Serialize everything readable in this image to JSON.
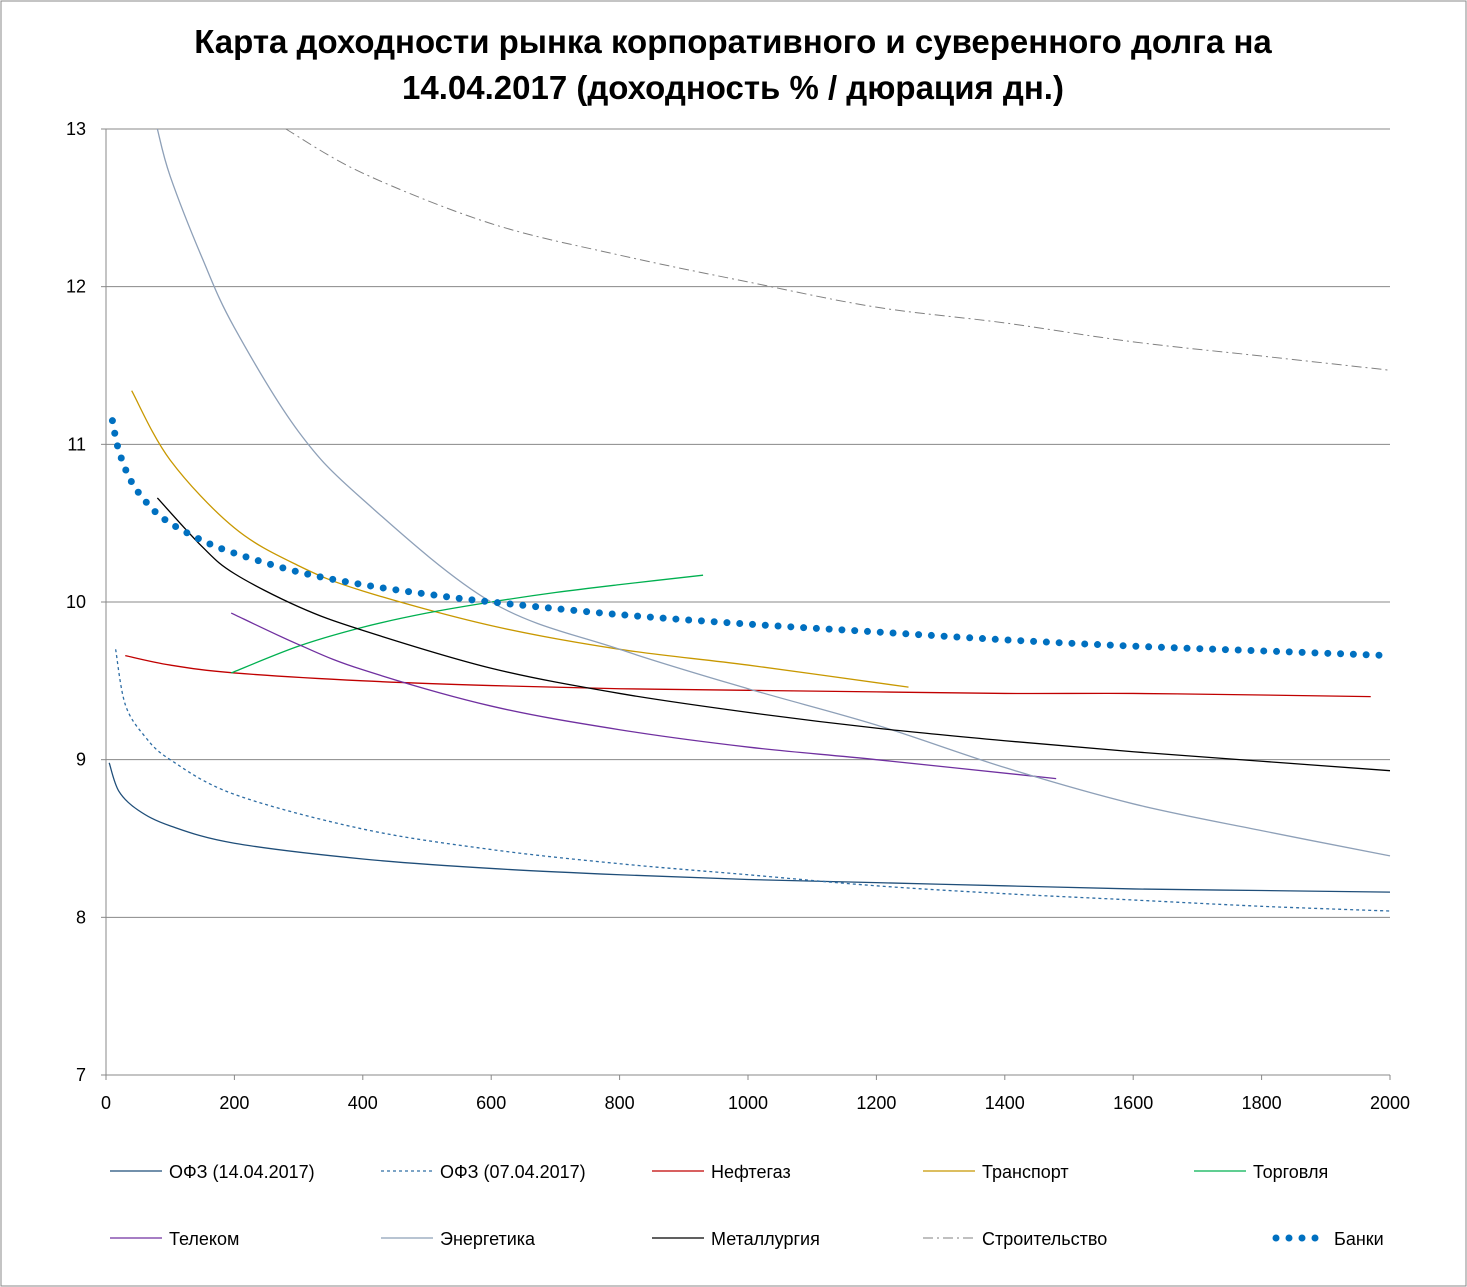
{
  "chart_data": {
    "type": "line",
    "title": [
      "Карта доходности рынка корпоративного и суверенного долга на",
      "14.04.2017 (доходность % / дюрация дн.)"
    ],
    "xlabel": "",
    "ylabel": "",
    "xlim": [
      0,
      2000
    ],
    "ylim": [
      7,
      13
    ],
    "xticks": [
      0,
      200,
      400,
      600,
      800,
      1000,
      1200,
      1400,
      1600,
      1800,
      2000
    ],
    "yticks": [
      7,
      8,
      9,
      10,
      11,
      12,
      13
    ],
    "grid": "horizontal",
    "legend_position": "bottom",
    "series": [
      {
        "name": "ОФЗ (14.04.2017)",
        "color": "#1f4e79",
        "style": "solid",
        "points": [
          [
            5,
            8.98
          ],
          [
            20,
            8.8
          ],
          [
            50,
            8.68
          ],
          [
            100,
            8.58
          ],
          [
            200,
            8.47
          ],
          [
            400,
            8.37
          ],
          [
            600,
            8.31
          ],
          [
            800,
            8.27
          ],
          [
            1000,
            8.24
          ],
          [
            1200,
            8.22
          ],
          [
            1400,
            8.2
          ],
          [
            1600,
            8.18
          ],
          [
            1800,
            8.17
          ],
          [
            2000,
            8.16
          ]
        ]
      },
      {
        "name": "ОФЗ (07.04.2017)",
        "color": "#2e6da4",
        "style": "dotted",
        "points": [
          [
            15,
            9.7
          ],
          [
            30,
            9.35
          ],
          [
            60,
            9.15
          ],
          [
            100,
            9.0
          ],
          [
            200,
            8.78
          ],
          [
            400,
            8.56
          ],
          [
            600,
            8.43
          ],
          [
            800,
            8.34
          ],
          [
            1000,
            8.27
          ],
          [
            1200,
            8.2
          ],
          [
            1400,
            8.15
          ],
          [
            1600,
            8.11
          ],
          [
            1800,
            8.07
          ],
          [
            2000,
            8.04
          ]
        ]
      },
      {
        "name": "Нефтегаз",
        "color": "#c00000",
        "style": "solid",
        "points": [
          [
            30,
            9.66
          ],
          [
            100,
            9.6
          ],
          [
            200,
            9.55
          ],
          [
            400,
            9.5
          ],
          [
            600,
            9.47
          ],
          [
            800,
            9.45
          ],
          [
            1000,
            9.44
          ],
          [
            1200,
            9.43
          ],
          [
            1400,
            9.42
          ],
          [
            1600,
            9.42
          ],
          [
            1800,
            9.41
          ],
          [
            1970,
            9.4
          ]
        ]
      },
      {
        "name": "Транспорт",
        "color": "#c89800",
        "style": "solid",
        "points": [
          [
            40,
            11.34
          ],
          [
            100,
            10.9
          ],
          [
            200,
            10.47
          ],
          [
            300,
            10.23
          ],
          [
            400,
            10.07
          ],
          [
            600,
            9.85
          ],
          [
            800,
            9.7
          ],
          [
            1000,
            9.6
          ],
          [
            1250,
            9.46
          ]
        ]
      },
      {
        "name": "Торговля",
        "color": "#00b050",
        "style": "solid",
        "points": [
          [
            195,
            9.55
          ],
          [
            300,
            9.72
          ],
          [
            400,
            9.84
          ],
          [
            500,
            9.93
          ],
          [
            600,
            10.0
          ],
          [
            700,
            10.06
          ],
          [
            800,
            10.11
          ],
          [
            930,
            10.17
          ]
        ]
      },
      {
        "name": "Телеком",
        "color": "#7030a0",
        "style": "solid",
        "points": [
          [
            195,
            9.93
          ],
          [
            300,
            9.73
          ],
          [
            400,
            9.57
          ],
          [
            600,
            9.34
          ],
          [
            800,
            9.19
          ],
          [
            1000,
            9.08
          ],
          [
            1200,
            9.0
          ],
          [
            1480,
            8.88
          ]
        ]
      },
      {
        "name": "Энергетика",
        "color": "#8ea0b8",
        "style": "solid",
        "points": [
          [
            80,
            13.0
          ],
          [
            100,
            12.7
          ],
          [
            150,
            12.18
          ],
          [
            200,
            11.74
          ],
          [
            300,
            11.08
          ],
          [
            400,
            10.65
          ],
          [
            600,
            10.0
          ],
          [
            800,
            9.7
          ],
          [
            1000,
            9.45
          ],
          [
            1200,
            9.22
          ],
          [
            1400,
            8.95
          ],
          [
            1600,
            8.72
          ],
          [
            1800,
            8.55
          ],
          [
            2000,
            8.39
          ]
        ]
      },
      {
        "name": "Металлургия",
        "color": "#000000",
        "style": "solid",
        "points": [
          [
            80,
            10.66
          ],
          [
            150,
            10.35
          ],
          [
            200,
            10.18
          ],
          [
            300,
            9.97
          ],
          [
            400,
            9.82
          ],
          [
            600,
            9.58
          ],
          [
            800,
            9.42
          ],
          [
            1000,
            9.3
          ],
          [
            1200,
            9.2
          ],
          [
            1400,
            9.12
          ],
          [
            1600,
            9.05
          ],
          [
            1800,
            8.99
          ],
          [
            2000,
            8.93
          ]
        ]
      },
      {
        "name": "Строительство",
        "color": "#808080",
        "style": "dashdot",
        "points": [
          [
            280,
            13.0
          ],
          [
            400,
            12.72
          ],
          [
            600,
            12.4
          ],
          [
            800,
            12.2
          ],
          [
            1000,
            12.03
          ],
          [
            1200,
            11.87
          ],
          [
            1400,
            11.77
          ],
          [
            1600,
            11.65
          ],
          [
            1800,
            11.56
          ],
          [
            2000,
            11.47
          ]
        ]
      },
      {
        "name": "Банки",
        "color": "#0070c0",
        "style": "dots",
        "points": [
          [
            10,
            11.15
          ],
          [
            20,
            10.96
          ],
          [
            40,
            10.76
          ],
          [
            70,
            10.6
          ],
          [
            100,
            10.5
          ],
          [
            150,
            10.39
          ],
          [
            200,
            10.31
          ],
          [
            300,
            10.19
          ],
          [
            400,
            10.11
          ],
          [
            500,
            10.05
          ],
          [
            600,
            10.0
          ],
          [
            800,
            9.92
          ],
          [
            1000,
            9.86
          ],
          [
            1200,
            9.81
          ],
          [
            1400,
            9.76
          ],
          [
            1600,
            9.72
          ],
          [
            1800,
            9.69
          ],
          [
            2000,
            9.66
          ]
        ]
      }
    ]
  }
}
